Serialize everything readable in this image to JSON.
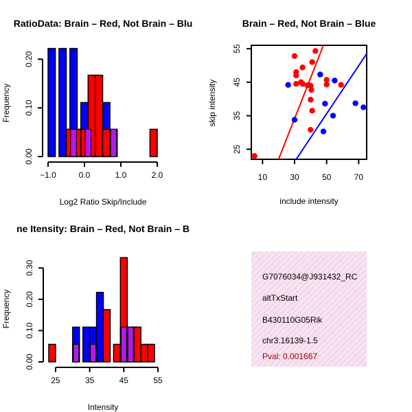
{
  "colors": {
    "red": "#ff0000",
    "blue": "#0000ff",
    "overlap": "#a020f0",
    "pink_panel": "#f4d9ec",
    "pval": "#990000"
  },
  "chart_data": [
    {
      "id": "ratio_hist",
      "type": "bar",
      "title": "RatioData: Brain - Red, Not Brain - Blue",
      "title_visible": "RatioData: Brain – Red, Not Brain – Blu",
      "xlabel": "Log2 Ratio Skip/Include",
      "ylabel": "Frequency",
      "xlim": [
        -1.0,
        2.0
      ],
      "ylim": [
        0,
        0.22
      ],
      "xticks": [
        {
          "v": -1.0,
          "t": "−1.0"
        },
        {
          "v": 0.0,
          "t": "0.0"
        },
        {
          "v": 1.0,
          "t": "1.0"
        },
        {
          "v": 2.0,
          "t": "2.0"
        }
      ],
      "yticks": [
        {
          "v": 0.0,
          "t": "0.00"
        },
        {
          "v": 0.1,
          "t": "0.10"
        },
        {
          "v": 0.2,
          "t": "0.20"
        }
      ],
      "bin_width": 0.2,
      "series": [
        {
          "name": "Not Brain",
          "color": "blue",
          "bins": [
            -1.0,
            -0.7,
            -0.4,
            -0.1,
            0.2,
            0.5
          ],
          "values": [
            0.222,
            0.222,
            0.222,
            0.111,
            0.167,
            0.111
          ]
        },
        {
          "name": "Brain",
          "color": "red",
          "bins": [
            -0.5,
            -0.3,
            -0.1,
            0.1,
            0.3,
            0.5,
            0.7,
            1.1,
            1.3,
            1.5,
            1.8
          ],
          "values": [
            0.056,
            0.056,
            0.056,
            0.167,
            0.167,
            0.056,
            0.056,
            0,
            0,
            0,
            0.056
          ]
        }
      ],
      "overlap_bins": [
        {
          "x": -0.4,
          "h": 0.056
        },
        {
          "x": 0.0,
          "h": 0.056
        },
        {
          "x": 0.7,
          "h": 0.056
        }
      ]
    },
    {
      "id": "scatter",
      "type": "scatter",
      "title": "Brain - Red, Not Brain - Blue",
      "title_visible": "Brain – Red, Not Brain – Blue",
      "xlabel": "include intensity",
      "ylabel": "skip intensity",
      "xlim": [
        3,
        75
      ],
      "ylim": [
        22,
        56
      ],
      "xticks": [
        {
          "v": 10,
          "t": "10"
        },
        {
          "v": 30,
          "t": "30"
        },
        {
          "v": 50,
          "t": "50"
        },
        {
          "v": 70,
          "t": "70"
        }
      ],
      "yticks": [
        {
          "v": 25,
          "t": "25"
        },
        {
          "v": 35,
          "t": "35"
        },
        {
          "v": 45,
          "t": "45"
        },
        {
          "v": 55,
          "t": "55"
        }
      ],
      "series": [
        {
          "name": "Brain",
          "color": "red",
          "points": [
            [
              5,
              23
            ],
            [
              30,
              52.8
            ],
            [
              31,
              48
            ],
            [
              31,
              44.5
            ],
            [
              31,
              47
            ],
            [
              34,
              45
            ],
            [
              35,
              44.5
            ],
            [
              38,
              44.1
            ],
            [
              40,
              44
            ],
            [
              40.5,
              42.7
            ],
            [
              41,
              51
            ],
            [
              43,
              54.3
            ],
            [
              41,
              36.5
            ],
            [
              40,
              39.8
            ],
            [
              40,
              30.8
            ],
            [
              50,
              45.7
            ],
            [
              50,
              44.3
            ],
            [
              59,
              44.2
            ],
            [
              35,
              49.4
            ]
          ],
          "fit_line": [
            [
              20,
              22
            ],
            [
              48,
              56
            ]
          ]
        },
        {
          "name": "Not Brain",
          "color": "blue",
          "points": [
            [
              26,
              44.2
            ],
            [
              30,
              33.8
            ],
            [
              46,
              47.3
            ],
            [
              48,
              30.3
            ],
            [
              49,
              38.6
            ],
            [
              55,
              45.5
            ],
            [
              54,
              35
            ],
            [
              68,
              38.7
            ],
            [
              73,
              37.5
            ]
          ],
          "fit_line": [
            [
              31,
              22
            ],
            [
              75,
              53.5
            ]
          ]
        }
      ]
    },
    {
      "id": "intensity_hist",
      "type": "bar",
      "title": "Intensity: Brain - Red, Not Brain - Blue",
      "title_visible": "ne Itensity: Brain – Red, Not Brain – B",
      "xlabel": "Intensity",
      "ylabel": "Frequency",
      "xlim": [
        23,
        55
      ],
      "ylim": [
        0,
        0.34
      ],
      "xticks": [
        {
          "v": 25,
          "t": "25"
        },
        {
          "v": 35,
          "t": "35"
        },
        {
          "v": 45,
          "t": "45"
        },
        {
          "v": 55,
          "t": "55"
        }
      ],
      "yticks": [
        {
          "v": 0.0,
          "t": "0.00"
        },
        {
          "v": 0.1,
          "t": "0.10"
        },
        {
          "v": 0.2,
          "t": "0.20"
        },
        {
          "v": 0.3,
          "t": "0.30"
        }
      ],
      "bin_width": 2,
      "series": [
        {
          "name": "Not Brain",
          "color": "blue",
          "bins": [
            30,
            33,
            35,
            37,
            44,
            46,
            48
          ],
          "values": [
            0.111,
            0.111,
            0.111,
            0.222,
            0.111,
            0.111,
            0.111
          ]
        },
        {
          "name": "Brain",
          "color": "red",
          "bins": [
            23,
            30,
            35,
            39,
            42,
            44,
            46,
            48,
            50,
            52
          ],
          "values": [
            0.056,
            0.056,
            0.056,
            0.167,
            0.056,
            0.333,
            0.111,
            0.111,
            0.056,
            0.056
          ]
        }
      ],
      "overlap_bins": [
        {
          "x": 30,
          "h": 0.056
        },
        {
          "x": 35,
          "h": 0.056
        },
        {
          "x": 44,
          "h": 0.111
        },
        {
          "x": 46,
          "h": 0.111
        }
      ]
    }
  ],
  "info_panel": {
    "line1": "G7076034@J931432_RC",
    "line2": "altTxStart",
    "line3": "B430110G05Rik",
    "line4": "chr3.16139-1.5",
    "pval": "Pval: 0.001667"
  }
}
